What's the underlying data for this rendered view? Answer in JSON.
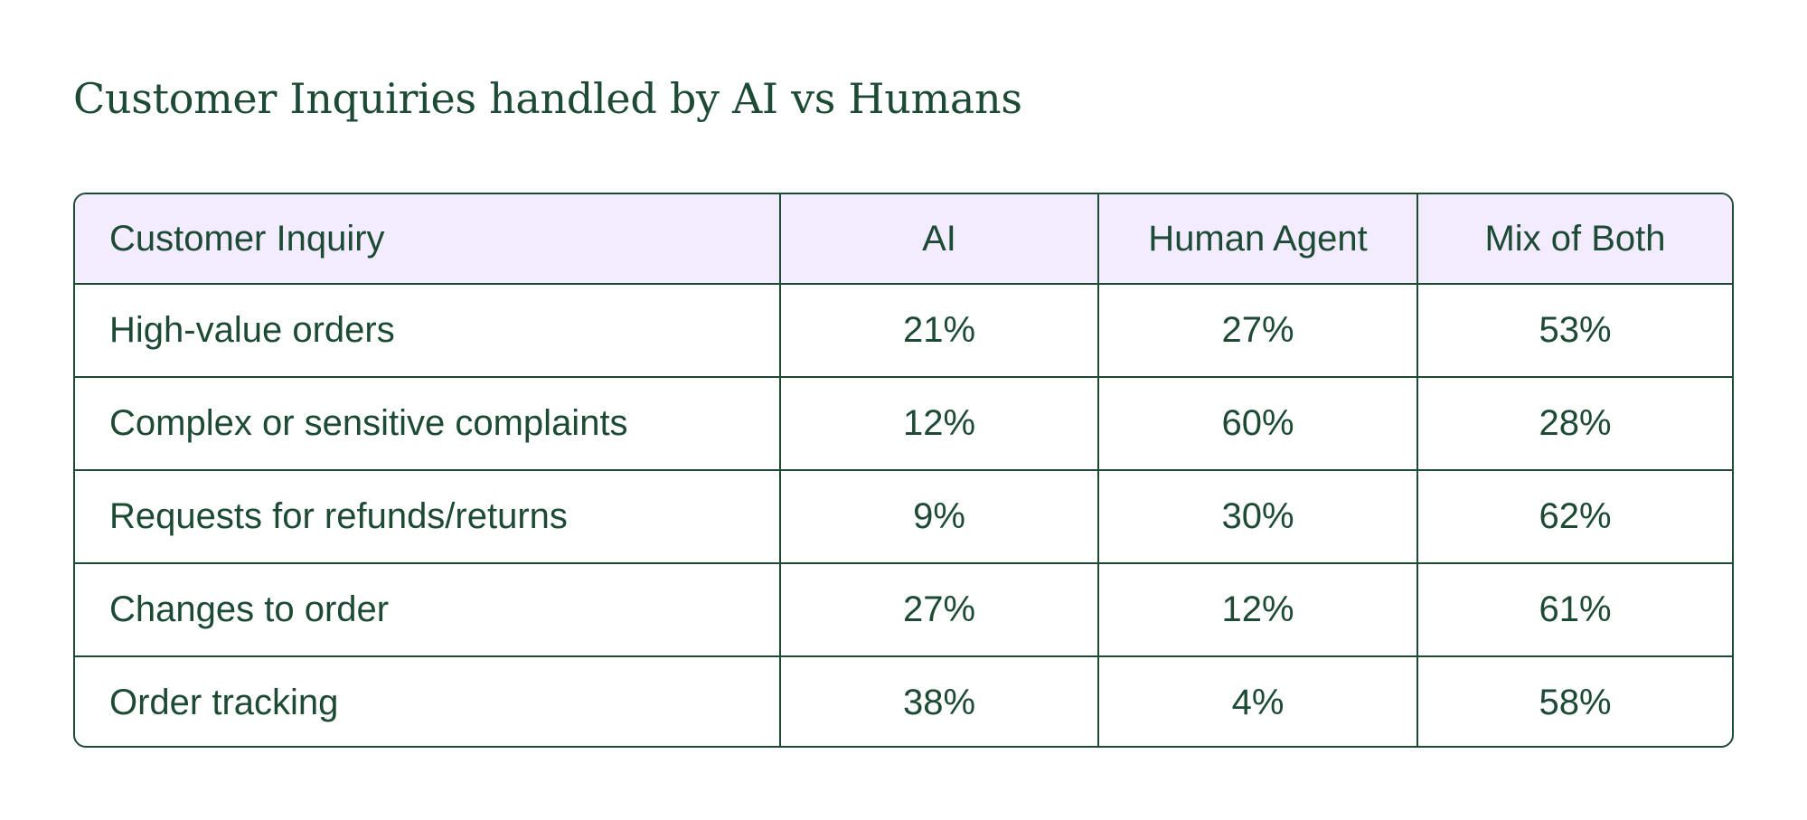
{
  "chart_data": {
    "type": "table",
    "title": "Customer Inquiries handled by AI vs Humans",
    "columns": [
      "Customer Inquiry",
      "AI",
      "Human Agent",
      "Mix of Both"
    ],
    "rows": [
      [
        "High-value orders",
        "21%",
        "27%",
        "53%"
      ],
      [
        "Complex or sensitive complaints",
        "12%",
        "60%",
        "28%"
      ],
      [
        "Requests for refunds/returns",
        "9%",
        "30%",
        "62%"
      ],
      [
        "Changes to order",
        "27%",
        "12%",
        "61%"
      ],
      [
        "Order tracking",
        "38%",
        "4%",
        "58%"
      ]
    ]
  },
  "colors": {
    "text": "#1d4a35",
    "border": "#1d4a35",
    "header_background": "#f3ecfe"
  }
}
